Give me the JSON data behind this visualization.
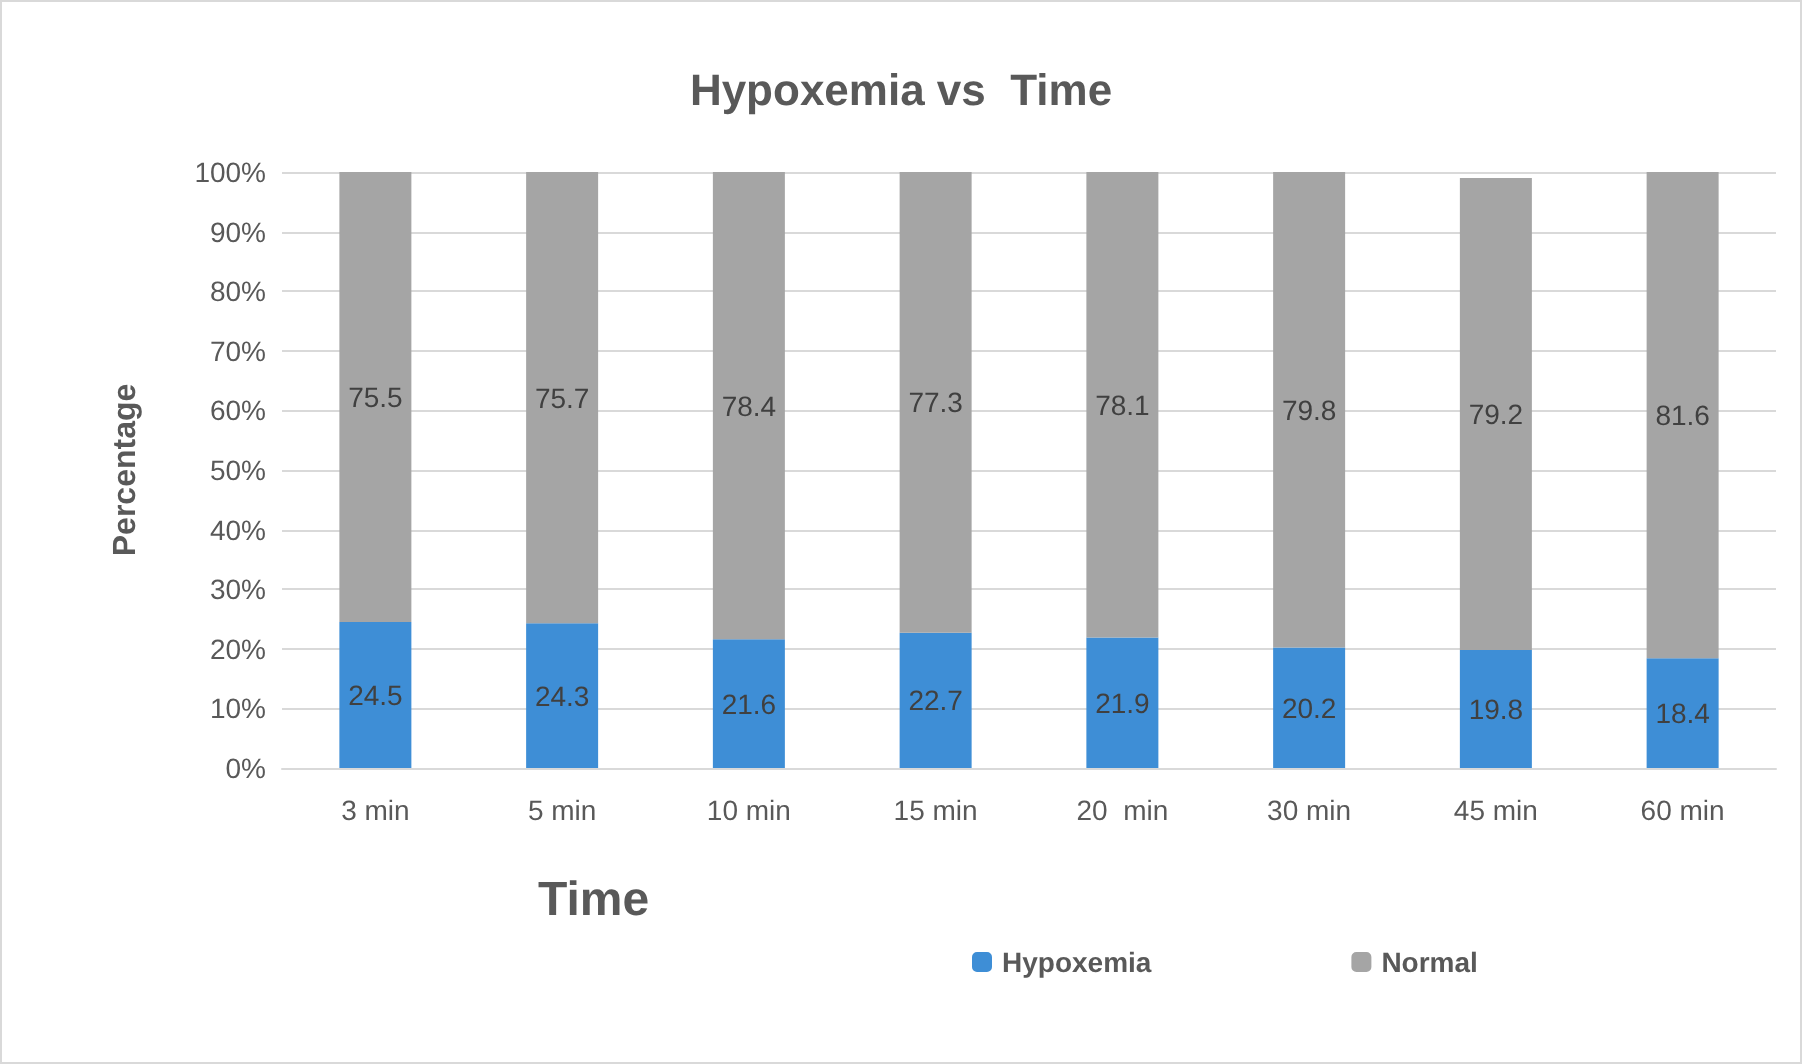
{
  "chart_data": {
    "type": "bar",
    "title": "Hypoxemia vs  Time",
    "xlabel": "Time",
    "ylabel": "Percentage",
    "categories": [
      "3 min",
      "5 min",
      "10 min",
      "15 min",
      "20  min",
      "30 min",
      "45 min",
      "60 min"
    ],
    "series": [
      {
        "name": "Hypoxemia",
        "color": "#3e8ed6",
        "values": [
          24.5,
          24.3,
          21.6,
          22.7,
          21.9,
          20.2,
          19.8,
          18.4
        ]
      },
      {
        "name": "Normal",
        "color": "#a5a5a5",
        "values": [
          75.5,
          75.7,
          78.4,
          77.3,
          78.1,
          79.8,
          79.2,
          81.6
        ]
      }
    ],
    "stacked": true,
    "data_labels": true,
    "ylim": [
      0,
      100
    ],
    "yticks": [
      {
        "value": 0,
        "label": "0%"
      },
      {
        "value": 10,
        "label": "10%"
      },
      {
        "value": 20,
        "label": "20%"
      },
      {
        "value": 30,
        "label": "30%"
      },
      {
        "value": 40,
        "label": "40%"
      },
      {
        "value": 50,
        "label": "50%"
      },
      {
        "value": 60,
        "label": "60%"
      },
      {
        "value": 70,
        "label": "70%"
      },
      {
        "value": 80,
        "label": "80%"
      },
      {
        "value": 90,
        "label": "90%"
      },
      {
        "value": 100,
        "label": "100%"
      }
    ],
    "grid": "y",
    "legend": "bottom right"
  }
}
